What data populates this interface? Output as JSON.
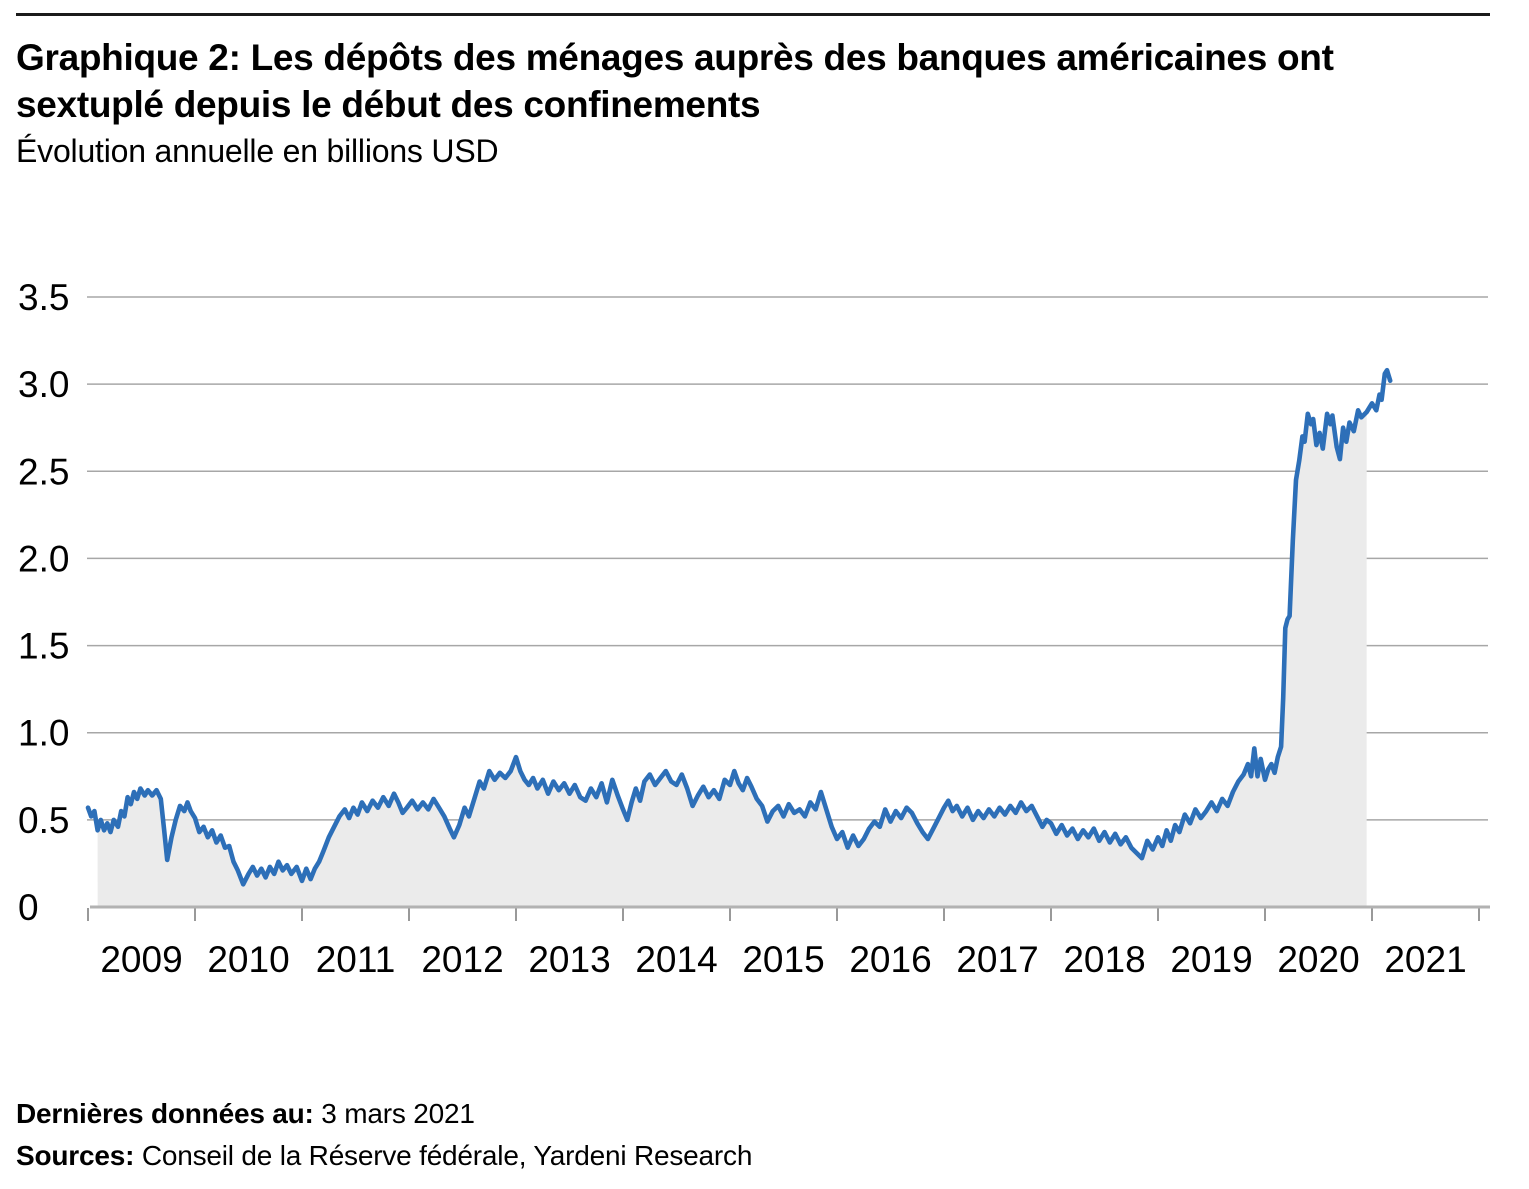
{
  "header": {
    "title_lines": [
      "Graphique 2: Les dépôts des ménages auprès des banques américaines ont",
      "sextuplé depuis le début des confinements"
    ],
    "subtitle": "Évolution annuelle en billions USD"
  },
  "footer": {
    "last_data_label": "Dernières données au:",
    "last_data_value": " 3 mars 2021",
    "sources_label": "Sources:",
    "sources_value": " Conseil de la Réserve fédérale, Yardeni Research"
  },
  "chart_data": {
    "type": "line",
    "title": "Graphique 2: Les dépôts des ménages auprès des banques américaines ont sextuplé depuis le début des confinements",
    "subtitle": "Évolution annuelle en billions USD",
    "ylabel": "billions USD (évolution annuelle)",
    "xlabel": "",
    "xlim": [
      2009,
      2022
    ],
    "ylim": [
      0,
      3.5
    ],
    "grid": true,
    "legend": false,
    "y_ticks": [
      {
        "value": 0,
        "label": "0"
      },
      {
        "value": 0.5,
        "label": "0.5"
      },
      {
        "value": 1.0,
        "label": "1.0"
      },
      {
        "value": 1.5,
        "label": "1.5"
      },
      {
        "value": 2.0,
        "label": "2.0"
      },
      {
        "value": 2.5,
        "label": "2.5"
      },
      {
        "value": 3.0,
        "label": "3.0"
      },
      {
        "value": 3.5,
        "label": "3.5"
      }
    ],
    "x_tick_years": [
      2009,
      2010,
      2011,
      2012,
      2013,
      2014,
      2015,
      2016,
      2017,
      2018,
      2019,
      2020,
      2021,
      2022
    ],
    "x_year_labels": [
      "2009",
      "2010",
      "2011",
      "2012",
      "2013",
      "2014",
      "2015",
      "2016",
      "2017",
      "2018",
      "2019",
      "2020",
      "2021"
    ],
    "colors": {
      "line": "#2d6fb8",
      "area": "#ebebeb",
      "grid": "#a7a7a7",
      "axis": "#b2b2b2",
      "tick": "#999999",
      "text": "#000000",
      "rule": "#1b1b1b"
    },
    "area_fill_x_range": [
      2009.09,
      2020.95
    ],
    "series": [
      {
        "points": [
          [
            2009.0,
            0.57
          ],
          [
            2009.03,
            0.52
          ],
          [
            2009.06,
            0.55
          ],
          [
            2009.09,
            0.44
          ],
          [
            2009.12,
            0.5
          ],
          [
            2009.15,
            0.44
          ],
          [
            2009.18,
            0.48
          ],
          [
            2009.21,
            0.43
          ],
          [
            2009.24,
            0.5
          ],
          [
            2009.28,
            0.46
          ],
          [
            2009.31,
            0.55
          ],
          [
            2009.34,
            0.52
          ],
          [
            2009.37,
            0.63
          ],
          [
            2009.4,
            0.59
          ],
          [
            2009.43,
            0.66
          ],
          [
            2009.46,
            0.62
          ],
          [
            2009.49,
            0.68
          ],
          [
            2009.53,
            0.64
          ],
          [
            2009.56,
            0.67
          ],
          [
            2009.6,
            0.64
          ],
          [
            2009.64,
            0.67
          ],
          [
            2009.68,
            0.62
          ],
          [
            2009.71,
            0.45
          ],
          [
            2009.74,
            0.27
          ],
          [
            2009.78,
            0.4
          ],
          [
            2009.82,
            0.5
          ],
          [
            2009.86,
            0.58
          ],
          [
            2009.9,
            0.55
          ],
          [
            2009.93,
            0.6
          ],
          [
            2009.96,
            0.55
          ],
          [
            2010.0,
            0.51
          ],
          [
            2010.04,
            0.43
          ],
          [
            2010.08,
            0.46
          ],
          [
            2010.12,
            0.4
          ],
          [
            2010.16,
            0.44
          ],
          [
            2010.2,
            0.37
          ],
          [
            2010.24,
            0.41
          ],
          [
            2010.28,
            0.34
          ],
          [
            2010.32,
            0.35
          ],
          [
            2010.36,
            0.26
          ],
          [
            2010.4,
            0.21
          ],
          [
            2010.45,
            0.13
          ],
          [
            2010.5,
            0.19
          ],
          [
            2010.54,
            0.23
          ],
          [
            2010.58,
            0.18
          ],
          [
            2010.62,
            0.22
          ],
          [
            2010.66,
            0.17
          ],
          [
            2010.7,
            0.23
          ],
          [
            2010.74,
            0.19
          ],
          [
            2010.78,
            0.26
          ],
          [
            2010.82,
            0.21
          ],
          [
            2010.86,
            0.24
          ],
          [
            2010.9,
            0.19
          ],
          [
            2010.95,
            0.23
          ],
          [
            2011.0,
            0.15
          ],
          [
            2011.04,
            0.22
          ],
          [
            2011.08,
            0.16
          ],
          [
            2011.12,
            0.22
          ],
          [
            2011.16,
            0.26
          ],
          [
            2011.2,
            0.32
          ],
          [
            2011.25,
            0.4
          ],
          [
            2011.3,
            0.46
          ],
          [
            2011.35,
            0.52
          ],
          [
            2011.4,
            0.56
          ],
          [
            2011.44,
            0.51
          ],
          [
            2011.48,
            0.57
          ],
          [
            2011.52,
            0.53
          ],
          [
            2011.56,
            0.6
          ],
          [
            2011.61,
            0.55
          ],
          [
            2011.66,
            0.61
          ],
          [
            2011.71,
            0.57
          ],
          [
            2011.76,
            0.63
          ],
          [
            2011.81,
            0.58
          ],
          [
            2011.86,
            0.65
          ],
          [
            2011.9,
            0.6
          ],
          [
            2011.94,
            0.54
          ],
          [
            2011.98,
            0.57
          ],
          [
            2012.03,
            0.61
          ],
          [
            2012.08,
            0.56
          ],
          [
            2012.13,
            0.6
          ],
          [
            2012.18,
            0.56
          ],
          [
            2012.23,
            0.62
          ],
          [
            2012.28,
            0.57
          ],
          [
            2012.33,
            0.52
          ],
          [
            2012.38,
            0.45
          ],
          [
            2012.42,
            0.4
          ],
          [
            2012.47,
            0.47
          ],
          [
            2012.52,
            0.57
          ],
          [
            2012.56,
            0.52
          ],
          [
            2012.61,
            0.62
          ],
          [
            2012.66,
            0.72
          ],
          [
            2012.7,
            0.68
          ],
          [
            2012.75,
            0.78
          ],
          [
            2012.8,
            0.73
          ],
          [
            2012.85,
            0.77
          ],
          [
            2012.9,
            0.74
          ],
          [
            2012.95,
            0.78
          ],
          [
            2013.0,
            0.86
          ],
          [
            2013.04,
            0.78
          ],
          [
            2013.08,
            0.73
          ],
          [
            2013.12,
            0.7
          ],
          [
            2013.16,
            0.74
          ],
          [
            2013.2,
            0.68
          ],
          [
            2013.25,
            0.73
          ],
          [
            2013.3,
            0.65
          ],
          [
            2013.35,
            0.72
          ],
          [
            2013.4,
            0.67
          ],
          [
            2013.45,
            0.71
          ],
          [
            2013.5,
            0.65
          ],
          [
            2013.55,
            0.7
          ],
          [
            2013.6,
            0.63
          ],
          [
            2013.65,
            0.61
          ],
          [
            2013.7,
            0.68
          ],
          [
            2013.75,
            0.63
          ],
          [
            2013.8,
            0.71
          ],
          [
            2013.85,
            0.6
          ],
          [
            2013.9,
            0.73
          ],
          [
            2013.95,
            0.64
          ],
          [
            2014.0,
            0.56
          ],
          [
            2014.04,
            0.5
          ],
          [
            2014.08,
            0.6
          ],
          [
            2014.12,
            0.68
          ],
          [
            2014.16,
            0.61
          ],
          [
            2014.2,
            0.72
          ],
          [
            2014.25,
            0.76
          ],
          [
            2014.3,
            0.7
          ],
          [
            2014.35,
            0.74
          ],
          [
            2014.4,
            0.78
          ],
          [
            2014.45,
            0.72
          ],
          [
            2014.5,
            0.7
          ],
          [
            2014.55,
            0.76
          ],
          [
            2014.6,
            0.68
          ],
          [
            2014.65,
            0.58
          ],
          [
            2014.7,
            0.64
          ],
          [
            2014.75,
            0.69
          ],
          [
            2014.8,
            0.63
          ],
          [
            2014.85,
            0.67
          ],
          [
            2014.9,
            0.62
          ],
          [
            2014.95,
            0.73
          ],
          [
            2015.0,
            0.7
          ],
          [
            2015.04,
            0.78
          ],
          [
            2015.08,
            0.71
          ],
          [
            2015.12,
            0.67
          ],
          [
            2015.16,
            0.74
          ],
          [
            2015.2,
            0.69
          ],
          [
            2015.25,
            0.62
          ],
          [
            2015.3,
            0.58
          ],
          [
            2015.35,
            0.49
          ],
          [
            2015.4,
            0.55
          ],
          [
            2015.45,
            0.58
          ],
          [
            2015.5,
            0.52
          ],
          [
            2015.55,
            0.59
          ],
          [
            2015.6,
            0.54
          ],
          [
            2015.65,
            0.56
          ],
          [
            2015.7,
            0.52
          ],
          [
            2015.75,
            0.6
          ],
          [
            2015.8,
            0.56
          ],
          [
            2015.85,
            0.66
          ],
          [
            2015.9,
            0.56
          ],
          [
            2015.95,
            0.46
          ],
          [
            2016.0,
            0.39
          ],
          [
            2016.05,
            0.43
          ],
          [
            2016.1,
            0.34
          ],
          [
            2016.15,
            0.41
          ],
          [
            2016.2,
            0.35
          ],
          [
            2016.25,
            0.39
          ],
          [
            2016.3,
            0.45
          ],
          [
            2016.35,
            0.49
          ],
          [
            2016.4,
            0.46
          ],
          [
            2016.45,
            0.56
          ],
          [
            2016.5,
            0.49
          ],
          [
            2016.55,
            0.55
          ],
          [
            2016.6,
            0.51
          ],
          [
            2016.65,
            0.57
          ],
          [
            2016.7,
            0.54
          ],
          [
            2016.75,
            0.48
          ],
          [
            2016.8,
            0.43
          ],
          [
            2016.85,
            0.39
          ],
          [
            2016.9,
            0.45
          ],
          [
            2016.95,
            0.51
          ],
          [
            2017.0,
            0.57
          ],
          [
            2017.04,
            0.61
          ],
          [
            2017.08,
            0.55
          ],
          [
            2017.12,
            0.58
          ],
          [
            2017.17,
            0.52
          ],
          [
            2017.22,
            0.57
          ],
          [
            2017.27,
            0.5
          ],
          [
            2017.32,
            0.55
          ],
          [
            2017.37,
            0.51
          ],
          [
            2017.42,
            0.56
          ],
          [
            2017.47,
            0.52
          ],
          [
            2017.52,
            0.57
          ],
          [
            2017.57,
            0.53
          ],
          [
            2017.62,
            0.58
          ],
          [
            2017.67,
            0.54
          ],
          [
            2017.72,
            0.6
          ],
          [
            2017.77,
            0.55
          ],
          [
            2017.82,
            0.58
          ],
          [
            2017.87,
            0.52
          ],
          [
            2017.92,
            0.46
          ],
          [
            2017.96,
            0.5
          ],
          [
            2018.0,
            0.48
          ],
          [
            2018.05,
            0.42
          ],
          [
            2018.1,
            0.47
          ],
          [
            2018.15,
            0.41
          ],
          [
            2018.2,
            0.45
          ],
          [
            2018.25,
            0.39
          ],
          [
            2018.3,
            0.44
          ],
          [
            2018.35,
            0.4
          ],
          [
            2018.4,
            0.45
          ],
          [
            2018.45,
            0.38
          ],
          [
            2018.5,
            0.43
          ],
          [
            2018.55,
            0.37
          ],
          [
            2018.6,
            0.42
          ],
          [
            2018.65,
            0.36
          ],
          [
            2018.7,
            0.4
          ],
          [
            2018.75,
            0.34
          ],
          [
            2018.8,
            0.31
          ],
          [
            2018.85,
            0.28
          ],
          [
            2018.9,
            0.38
          ],
          [
            2018.95,
            0.33
          ],
          [
            2019.0,
            0.4
          ],
          [
            2019.04,
            0.35
          ],
          [
            2019.08,
            0.44
          ],
          [
            2019.12,
            0.38
          ],
          [
            2019.16,
            0.47
          ],
          [
            2019.2,
            0.43
          ],
          [
            2019.25,
            0.53
          ],
          [
            2019.3,
            0.48
          ],
          [
            2019.35,
            0.56
          ],
          [
            2019.4,
            0.51
          ],
          [
            2019.45,
            0.55
          ],
          [
            2019.5,
            0.6
          ],
          [
            2019.55,
            0.55
          ],
          [
            2019.6,
            0.62
          ],
          [
            2019.65,
            0.58
          ],
          [
            2019.7,
            0.66
          ],
          [
            2019.75,
            0.72
          ],
          [
            2019.8,
            0.76
          ],
          [
            2019.84,
            0.82
          ],
          [
            2019.87,
            0.75
          ],
          [
            2019.9,
            0.91
          ],
          [
            2019.93,
            0.75
          ],
          [
            2019.96,
            0.85
          ],
          [
            2020.0,
            0.73
          ],
          [
            2020.03,
            0.79
          ],
          [
            2020.06,
            0.82
          ],
          [
            2020.09,
            0.77
          ],
          [
            2020.12,
            0.86
          ],
          [
            2020.15,
            0.92
          ],
          [
            2020.17,
            1.2
          ],
          [
            2020.19,
            1.6
          ],
          [
            2020.21,
            1.65
          ],
          [
            2020.23,
            1.67
          ],
          [
            2020.26,
            2.1
          ],
          [
            2020.29,
            2.45
          ],
          [
            2020.32,
            2.56
          ],
          [
            2020.35,
            2.7
          ],
          [
            2020.37,
            2.67
          ],
          [
            2020.4,
            2.83
          ],
          [
            2020.43,
            2.77
          ],
          [
            2020.45,
            2.8
          ],
          [
            2020.48,
            2.65
          ],
          [
            2020.51,
            2.72
          ],
          [
            2020.54,
            2.63
          ],
          [
            2020.58,
            2.83
          ],
          [
            2020.61,
            2.77
          ],
          [
            2020.63,
            2.82
          ],
          [
            2020.67,
            2.64
          ],
          [
            2020.7,
            2.57
          ],
          [
            2020.73,
            2.75
          ],
          [
            2020.76,
            2.67
          ],
          [
            2020.79,
            2.78
          ],
          [
            2020.83,
            2.73
          ],
          [
            2020.87,
            2.85
          ],
          [
            2020.9,
            2.81
          ],
          [
            2020.95,
            2.84
          ],
          [
            2021.0,
            2.89
          ],
          [
            2021.04,
            2.85
          ],
          [
            2021.07,
            2.94
          ],
          [
            2021.09,
            2.91
          ],
          [
            2021.12,
            3.06
          ],
          [
            2021.14,
            3.08
          ],
          [
            2021.17,
            3.02
          ]
        ]
      }
    ]
  }
}
